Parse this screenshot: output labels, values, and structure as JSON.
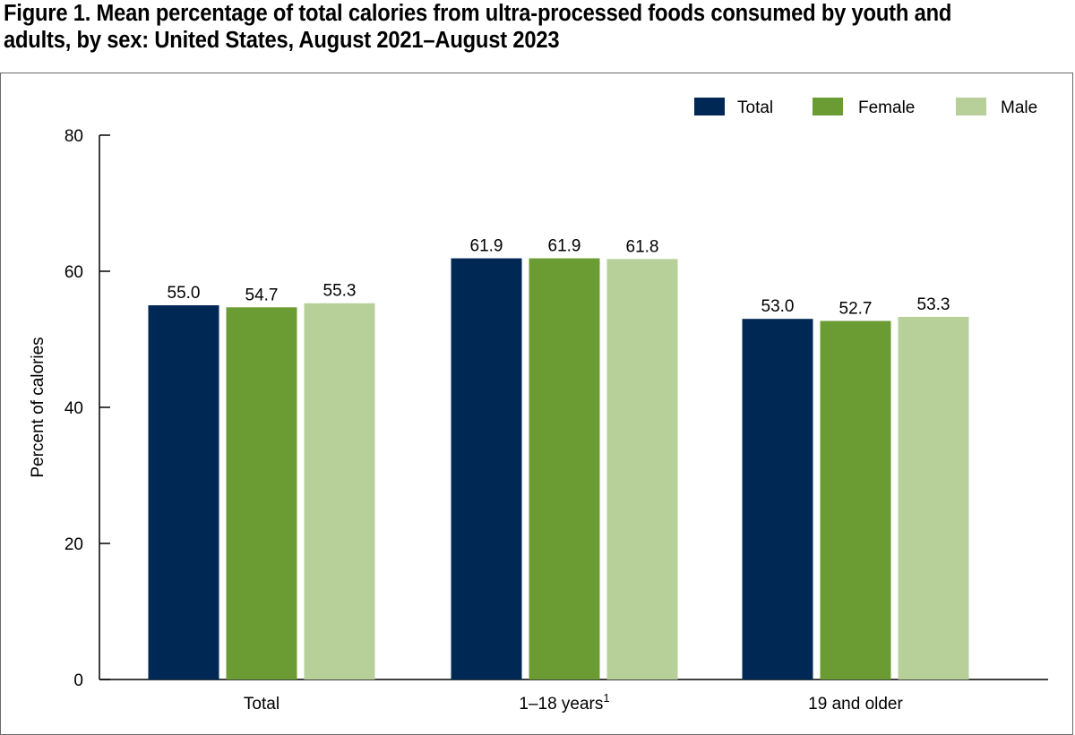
{
  "figure": {
    "title_line1": "Figure 1. Mean percentage of total calories from ultra-processed foods consumed by youth and",
    "title_line2": "adults, by sex: United States, August 2021–August 2023"
  },
  "chart_data": {
    "type": "bar",
    "title": "Figure 1. Mean percentage of total calories from ultra-processed foods consumed by youth and adults, by sex: United States, August 2021–August 2023",
    "categories": [
      "Total",
      "1–18 years",
      "19 and older"
    ],
    "category_superscripts": [
      "",
      "1",
      ""
    ],
    "series": [
      {
        "name": "Total",
        "color": "#002855",
        "values": [
          55.0,
          61.9,
          53.0
        ],
        "labels": [
          "55.0",
          "61.9",
          "53.0"
        ]
      },
      {
        "name": "Female",
        "color": "#6b9c34",
        "values": [
          54.7,
          61.9,
          52.7
        ],
        "labels": [
          "54.7",
          "61.9",
          "52.7"
        ]
      },
      {
        "name": "Male",
        "color": "#b7d09a",
        "values": [
          55.3,
          61.8,
          53.3
        ],
        "labels": [
          "55.3",
          "61.8",
          "53.3"
        ]
      }
    ],
    "xlabel": "",
    "ylabel": "Percent of calories",
    "ylim": [
      0,
      80
    ],
    "yticks": [
      0,
      20,
      40,
      60,
      80
    ],
    "legend_position": "top-right",
    "grid": false
  }
}
